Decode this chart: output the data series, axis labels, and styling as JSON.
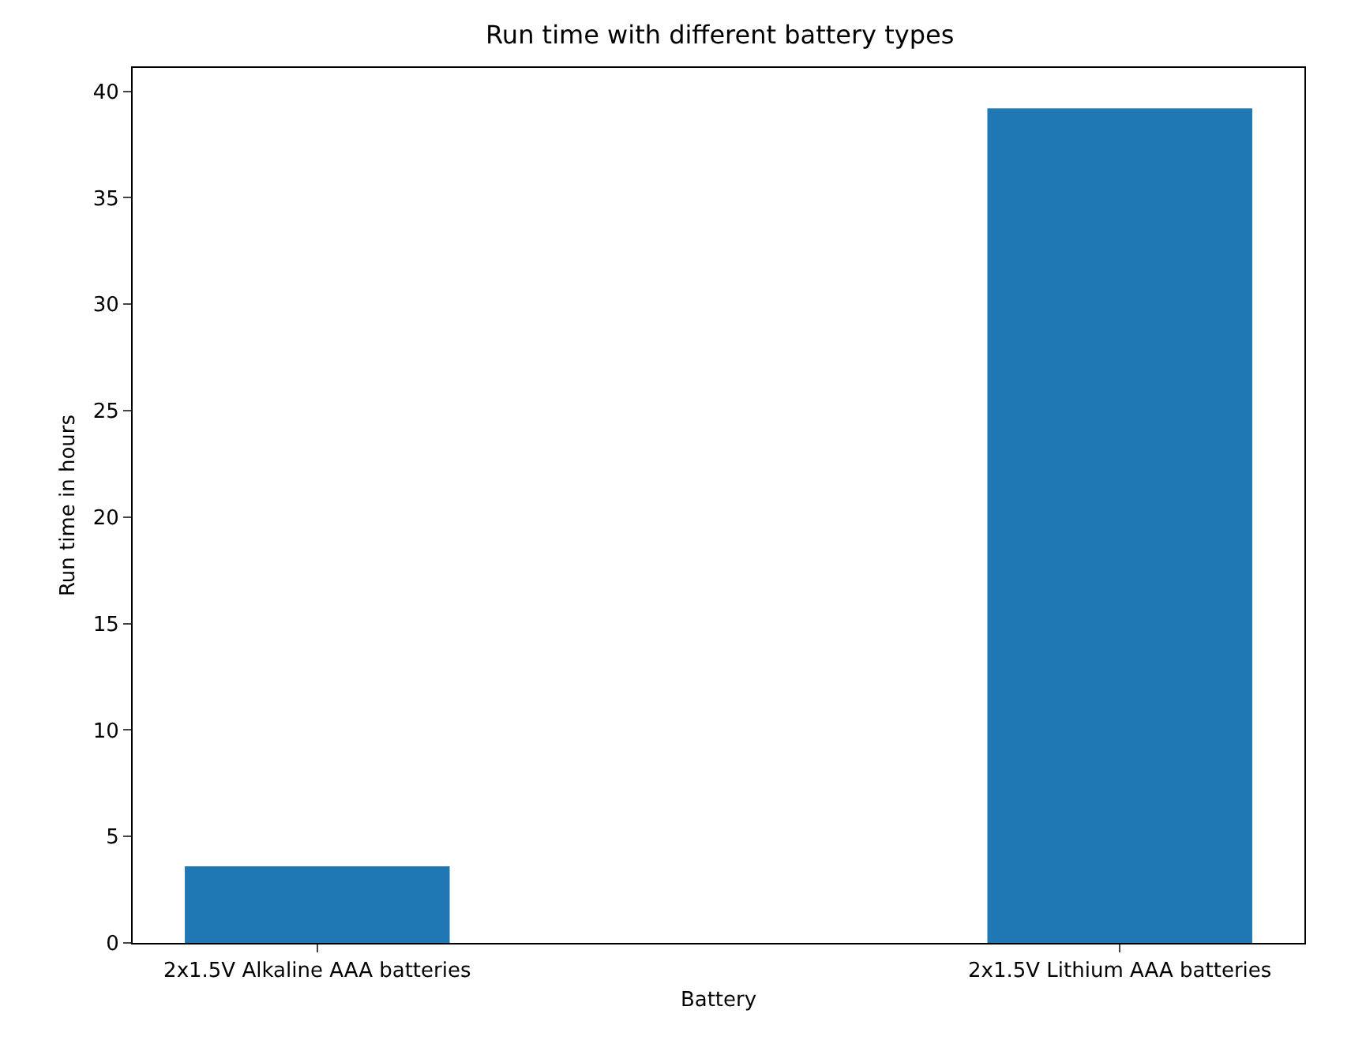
{
  "chart_data": {
    "type": "bar",
    "title": "Run time with different battery types",
    "xlabel": "Battery",
    "ylabel": "Run time in hours",
    "categories": [
      "2x1.5V Alkaline AAA batteries",
      "2x1.5V Lithium AAA batteries"
    ],
    "values": [
      3.6,
      39.2
    ],
    "color": "#1f77b4",
    "ylim": [
      0,
      41.1
    ],
    "yticks": [
      0,
      5,
      10,
      15,
      20,
      25,
      30,
      35,
      40
    ],
    "grid": false
  }
}
